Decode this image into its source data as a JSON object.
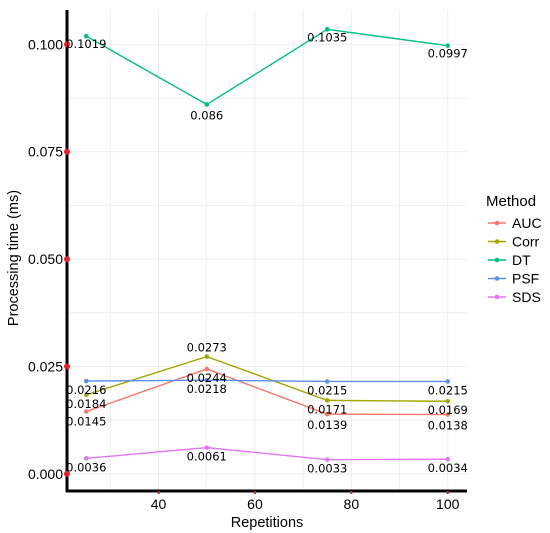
{
  "chart_data": {
    "type": "line",
    "xlabel": "Repetitions",
    "ylabel": "Processing time (ms)",
    "x": [
      25,
      50,
      75,
      100
    ],
    "xlim": [
      21,
      104
    ],
    "ylim": [
      -0.004,
      0.108
    ],
    "xticks": [
      {
        "value": 40,
        "label": "40"
      },
      {
        "value": 60,
        "label": "60"
      },
      {
        "value": 80,
        "label": "80"
      },
      {
        "value": 100,
        "label": "100"
      }
    ],
    "yticks": [
      {
        "value": 0.0,
        "label": "0.000"
      },
      {
        "value": 0.025,
        "label": "0.025"
      },
      {
        "value": 0.05,
        "label": "0.050"
      },
      {
        "value": 0.075,
        "label": "0.075"
      },
      {
        "value": 0.1,
        "label": "0.100"
      }
    ],
    "grid": true,
    "legend": {
      "title": "Method",
      "position": "right"
    },
    "series": [
      {
        "name": "AUC",
        "color": "#f8766d",
        "values": [
          0.0145,
          0.0244,
          0.0139,
          0.0138
        ],
        "labels": [
          "0.0145",
          "0.0244",
          "0.0139",
          "0.0138"
        ]
      },
      {
        "name": "Corr",
        "color": "#a3a500",
        "values": [
          0.0184,
          0.0273,
          0.0171,
          0.0169
        ],
        "labels": [
          "0.0184",
          "0.0273",
          "0.0171",
          "0.0169"
        ]
      },
      {
        "name": "DT",
        "color": "#00bf7d",
        "values": [
          0.1019,
          0.086,
          0.1035,
          0.0997
        ],
        "labels": [
          "0.1019",
          "0.086",
          "0.1035",
          "0.0997"
        ]
      },
      {
        "name": "PSF",
        "color": "#5b8fe8",
        "values": [
          0.0216,
          0.0218,
          0.0215,
          0.0215
        ],
        "labels": [
          "0.0216",
          "0.0218",
          "0.0215",
          "0.0215"
        ]
      },
      {
        "name": "SDS",
        "color": "#e076f0",
        "values": [
          0.0036,
          0.0061,
          0.0033,
          0.0034
        ],
        "labels": [
          "0.0036",
          "0.0061",
          "0.0033",
          "0.0034"
        ]
      }
    ]
  }
}
